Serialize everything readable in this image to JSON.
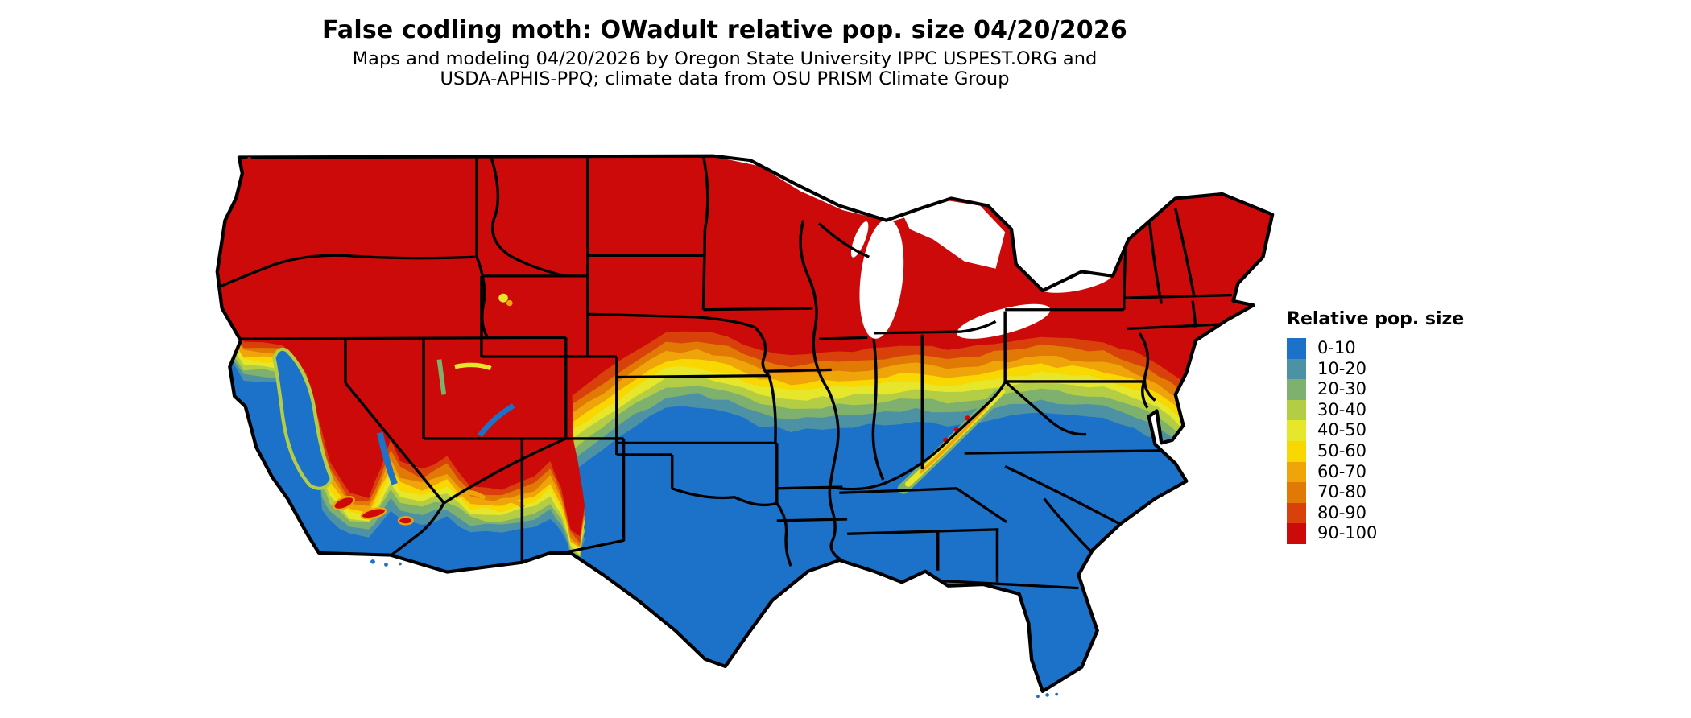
{
  "header": {
    "title": "False codling moth: OWadult relative pop. size 04/20/2026",
    "subtitle_line1": "Maps and modeling 04/20/2026 by Oregon State University IPPC USPEST.ORG and",
    "subtitle_line2": "USDA-APHIS-PPQ; climate data from OSU PRISM Climate Group"
  },
  "legend": {
    "title": "Relative pop. size",
    "bins": [
      {
        "label": "0-10",
        "color": "#1C72C8"
      },
      {
        "label": "10-20",
        "color": "#4D92A4"
      },
      {
        "label": "20-30",
        "color": "#7EB06E"
      },
      {
        "label": "30-40",
        "color": "#B3CD44"
      },
      {
        "label": "40-50",
        "color": "#E6E62A"
      },
      {
        "label": "50-60",
        "color": "#F8D800"
      },
      {
        "label": "60-70",
        "color": "#EFA40A"
      },
      {
        "label": "70-80",
        "color": "#E07A05"
      },
      {
        "label": "80-90",
        "color": "#D8420A"
      },
      {
        "label": "90-100",
        "color": "#CD0A0A"
      }
    ]
  },
  "map": {
    "border_color": "#000000",
    "water_color": "#FFFFFF"
  },
  "chart_data": {
    "type": "choropleth_map",
    "title": "False codling moth: OWadult relative pop. size 04/20/2026",
    "region": "Contiguous United States with state boundaries",
    "variable": "Relative pop. size",
    "date_shown": "04/20/2026",
    "legend_bins": [
      "0-10",
      "10-20",
      "20-30",
      "30-40",
      "40-50",
      "50-60",
      "60-70",
      "70-80",
      "80-90",
      "90-100"
    ],
    "bin_colors": [
      "#1C72C8",
      "#4D92A4",
      "#7EB06E",
      "#B3CD44",
      "#E6E62A",
      "#F8D800",
      "#EFA40A",
      "#E07A05",
      "#D8420A",
      "#CD0A0A"
    ],
    "spatial_pattern": {
      "north_new_england_pacific_northwest": "90-100",
      "mountain_west_high_elevation": "90-100 with orange-yellow fringes",
      "south_southeast_texas_florida_gulf": "0-10",
      "california_central_valley_and_socal_coast": "0-10",
      "transition_belt": "west Kansas/Nebraska east through Iowa, Illinois, Indiana, Ohio, Pennsylvania to the New Jersey coast",
      "appalachian_ridge": "locally elevated 30-100 diagonal band through the Virginias and Carolinas",
      "water_bodies_blank": "Great Lakes shown white"
    }
  }
}
